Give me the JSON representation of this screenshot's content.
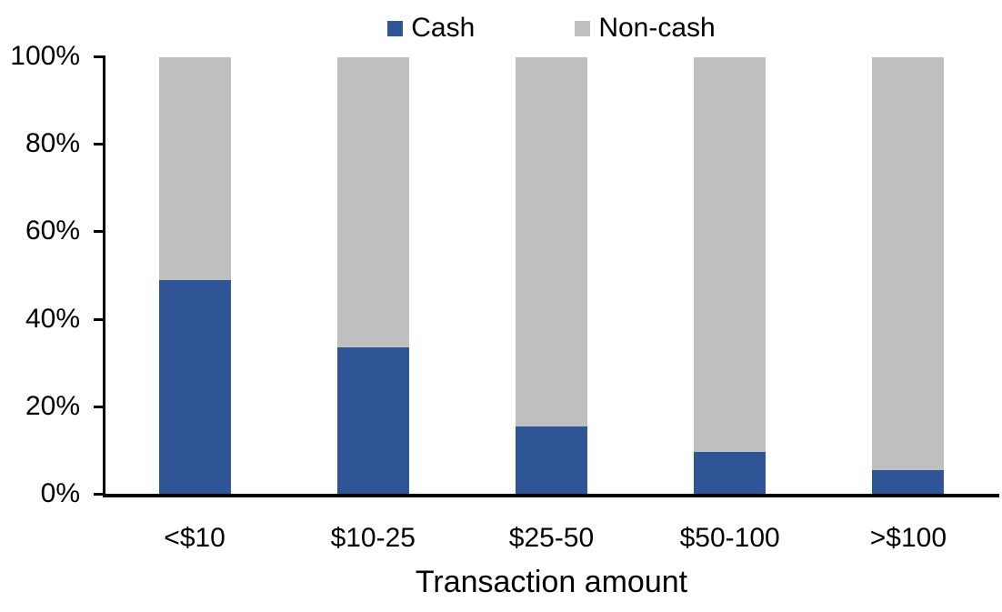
{
  "chart_data": {
    "type": "bar",
    "stacked": true,
    "percent_stacked": true,
    "title": "",
    "xlabel": "Transaction amount",
    "ylabel": "",
    "ylim": [
      0,
      100
    ],
    "y_ticks": [
      "0%",
      "20%",
      "40%",
      "60%",
      "80%",
      "100%"
    ],
    "grid": false,
    "legend_position": "top-center",
    "background_color": "#FFFFFF",
    "axis_color": "#000000",
    "categories": [
      "<$10",
      "$10-25",
      "$25-50",
      "$50-100",
      ">$100"
    ],
    "series": [
      {
        "name": "Cash",
        "color": "#2F5597",
        "values": [
          49,
          33.5,
          15.5,
          9.5,
          5.5
        ]
      },
      {
        "name": "Non-cash",
        "color": "#BFBFBF",
        "values": [
          51,
          66.5,
          84.5,
          90.5,
          94.5
        ]
      }
    ]
  }
}
